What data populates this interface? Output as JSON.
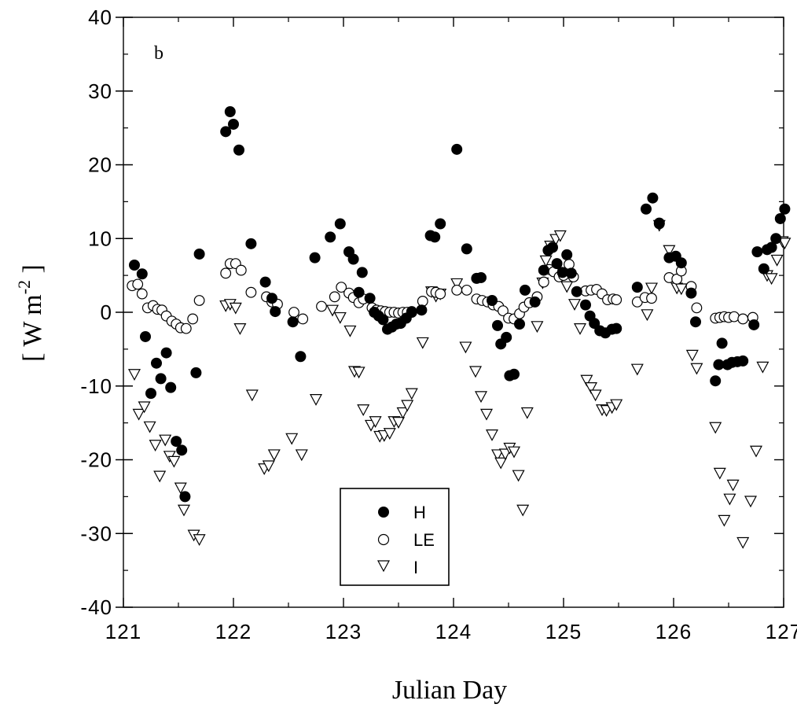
{
  "chart_data": {
    "type": "scatter",
    "panel_label": "b",
    "xlabel": "Julian Day",
    "ylabel_main": "[ W m",
    "ylabel_exp": "-2",
    "ylabel_close": " ]",
    "xlim": [
      121,
      127
    ],
    "ylim": [
      -40,
      40
    ],
    "xticks": [
      121,
      122,
      123,
      124,
      125,
      126,
      127
    ],
    "xtick_labels": [
      "121",
      "122",
      "123",
      "124",
      "125",
      "126",
      "127"
    ],
    "yticks": [
      -40,
      -30,
      -20,
      -10,
      0,
      10,
      20,
      30,
      40
    ],
    "ytick_labels": [
      "-40",
      "-30",
      "-20",
      "-10",
      "0",
      "10",
      "20",
      "30",
      "40"
    ],
    "grid": false,
    "legend_position": "bottom-center",
    "series": [
      {
        "name": "H",
        "marker": "filled-circle",
        "points": [
          [
            121.1,
            6.4
          ],
          [
            121.17,
            5.2
          ],
          [
            121.2,
            -3.3
          ],
          [
            121.25,
            -11.0
          ],
          [
            121.3,
            -6.9
          ],
          [
            121.34,
            -9.0
          ],
          [
            121.39,
            -5.5
          ],
          [
            121.43,
            -10.2
          ],
          [
            121.48,
            -17.5
          ],
          [
            121.53,
            -18.7
          ],
          [
            121.56,
            -25.0
          ],
          [
            121.66,
            -8.2
          ],
          [
            121.69,
            7.9
          ],
          [
            121.93,
            24.5
          ],
          [
            121.97,
            27.2
          ],
          [
            122.0,
            25.5
          ],
          [
            122.05,
            22.0
          ],
          [
            122.16,
            9.3
          ],
          [
            122.29,
            4.1
          ],
          [
            122.35,
            1.9
          ],
          [
            122.38,
            0.1
          ],
          [
            122.54,
            -1.3
          ],
          [
            122.61,
            -6.0
          ],
          [
            122.74,
            7.4
          ],
          [
            122.88,
            10.2
          ],
          [
            122.97,
            12.0
          ],
          [
            123.05,
            8.2
          ],
          [
            123.09,
            7.2
          ],
          [
            123.14,
            2.7
          ],
          [
            123.17,
            5.4
          ],
          [
            123.24,
            1.9
          ],
          [
            123.28,
            0.0
          ],
          [
            123.32,
            -0.5
          ],
          [
            123.36,
            -1.0
          ],
          [
            123.4,
            -2.3
          ],
          [
            123.44,
            -2.0
          ],
          [
            123.48,
            -1.6
          ],
          [
            123.52,
            -1.5
          ],
          [
            123.57,
            -0.8
          ],
          [
            123.62,
            0.0
          ],
          [
            123.71,
            0.3
          ],
          [
            123.79,
            10.4
          ],
          [
            123.83,
            10.2
          ],
          [
            123.88,
            12.0
          ],
          [
            124.03,
            22.1
          ],
          [
            124.12,
            8.6
          ],
          [
            124.21,
            4.6
          ],
          [
            124.25,
            4.7
          ],
          [
            124.35,
            1.6
          ],
          [
            124.4,
            -1.8
          ],
          [
            124.43,
            -4.3
          ],
          [
            124.48,
            -3.4
          ],
          [
            124.51,
            -8.6
          ],
          [
            124.55,
            -8.4
          ],
          [
            124.6,
            -1.6
          ],
          [
            124.65,
            3.0
          ],
          [
            124.74,
            1.4
          ],
          [
            124.82,
            5.7
          ],
          [
            124.86,
            8.4
          ],
          [
            124.9,
            8.8
          ],
          [
            124.94,
            6.6
          ],
          [
            124.99,
            5.4
          ],
          [
            125.03,
            7.8
          ],
          [
            125.07,
            5.3
          ],
          [
            125.12,
            2.8
          ],
          [
            125.2,
            1.0
          ],
          [
            125.24,
            -0.5
          ],
          [
            125.28,
            -1.5
          ],
          [
            125.33,
            -2.5
          ],
          [
            125.38,
            -2.8
          ],
          [
            125.44,
            -2.3
          ],
          [
            125.48,
            -2.2
          ],
          [
            125.67,
            3.4
          ],
          [
            125.75,
            14.0
          ],
          [
            125.81,
            15.5
          ],
          [
            125.87,
            12.1
          ],
          [
            125.96,
            7.4
          ],
          [
            126.02,
            7.6
          ],
          [
            126.07,
            6.7
          ],
          [
            126.16,
            2.6
          ],
          [
            126.2,
            -1.3
          ],
          [
            126.38,
            -9.3
          ],
          [
            126.41,
            -7.1
          ],
          [
            126.44,
            -4.2
          ],
          [
            126.49,
            -7.1
          ],
          [
            126.53,
            -6.8
          ],
          [
            126.58,
            -6.7
          ],
          [
            126.63,
            -6.6
          ],
          [
            126.73,
            -1.7
          ],
          [
            126.76,
            8.2
          ],
          [
            126.82,
            5.9
          ],
          [
            126.85,
            8.5
          ],
          [
            126.89,
            8.8
          ],
          [
            126.93,
            10.0
          ],
          [
            126.97,
            12.7
          ],
          [
            127.01,
            14.0
          ]
        ]
      },
      {
        "name": "LE",
        "marker": "open-circle",
        "points": [
          [
            121.08,
            3.6
          ],
          [
            121.13,
            3.8
          ],
          [
            121.17,
            2.5
          ],
          [
            121.22,
            0.6
          ],
          [
            121.27,
            0.9
          ],
          [
            121.31,
            0.4
          ],
          [
            121.35,
            0.3
          ],
          [
            121.39,
            -0.5
          ],
          [
            121.44,
            -1.2
          ],
          [
            121.48,
            -1.6
          ],
          [
            121.52,
            -2.1
          ],
          [
            121.57,
            -2.2
          ],
          [
            121.63,
            -0.9
          ],
          [
            121.69,
            1.6
          ],
          [
            121.93,
            5.3
          ],
          [
            121.97,
            6.6
          ],
          [
            122.02,
            6.6
          ],
          [
            122.07,
            5.7
          ],
          [
            122.16,
            2.7
          ],
          [
            122.3,
            2.1
          ],
          [
            122.35,
            1.4
          ],
          [
            122.4,
            1.1
          ],
          [
            122.55,
            0.0
          ],
          [
            122.63,
            -0.9
          ],
          [
            122.8,
            0.8
          ],
          [
            122.92,
            2.1
          ],
          [
            122.98,
            3.4
          ],
          [
            123.05,
            2.6
          ],
          [
            123.09,
            2.0
          ],
          [
            123.14,
            1.3
          ],
          [
            123.18,
            1.8
          ],
          [
            123.26,
            0.6
          ],
          [
            123.3,
            0.3
          ],
          [
            123.34,
            0.2
          ],
          [
            123.38,
            0.1
          ],
          [
            123.42,
            0.0
          ],
          [
            123.46,
            0.0
          ],
          [
            123.5,
            -0.1
          ],
          [
            123.54,
            0.0
          ],
          [
            123.58,
            0.0
          ],
          [
            123.62,
            0.1
          ],
          [
            123.72,
            1.5
          ],
          [
            123.8,
            2.8
          ],
          [
            123.84,
            2.7
          ],
          [
            123.88,
            2.5
          ],
          [
            124.03,
            3.0
          ],
          [
            124.12,
            3.0
          ],
          [
            124.21,
            1.8
          ],
          [
            124.26,
            1.6
          ],
          [
            124.31,
            1.4
          ],
          [
            124.36,
            1.0
          ],
          [
            124.41,
            0.8
          ],
          [
            124.45,
            0.2
          ],
          [
            124.5,
            -0.8
          ],
          [
            124.55,
            -0.9
          ],
          [
            124.6,
            -0.2
          ],
          [
            124.64,
            0.7
          ],
          [
            124.69,
            1.3
          ],
          [
            124.76,
            2.1
          ],
          [
            124.82,
            4.1
          ],
          [
            124.87,
            5.8
          ],
          [
            124.91,
            5.5
          ],
          [
            124.96,
            4.8
          ],
          [
            125.0,
            5.0
          ],
          [
            125.05,
            6.5
          ],
          [
            125.09,
            4.8
          ],
          [
            125.2,
            2.9
          ],
          [
            125.25,
            3.0
          ],
          [
            125.3,
            3.1
          ],
          [
            125.35,
            2.5
          ],
          [
            125.4,
            1.7
          ],
          [
            125.45,
            1.8
          ],
          [
            125.48,
            1.7
          ],
          [
            125.67,
            1.4
          ],
          [
            125.74,
            2.0
          ],
          [
            125.8,
            1.9
          ],
          [
            125.87,
            12.0
          ],
          [
            125.96,
            4.7
          ],
          [
            126.03,
            4.5
          ],
          [
            126.07,
            5.6
          ],
          [
            126.16,
            3.5
          ],
          [
            126.21,
            0.6
          ],
          [
            126.38,
            -0.8
          ],
          [
            126.42,
            -0.7
          ],
          [
            126.46,
            -0.6
          ],
          [
            126.5,
            -0.7
          ],
          [
            126.55,
            -0.6
          ],
          [
            126.63,
            -0.9
          ],
          [
            126.72,
            -0.7
          ]
        ]
      },
      {
        "name": "I",
        "marker": "open-triangle-down",
        "points": [
          [
            121.1,
            -8.4
          ],
          [
            121.14,
            -13.8
          ],
          [
            121.19,
            -12.8
          ],
          [
            121.24,
            -15.5
          ],
          [
            121.29,
            -18.0
          ],
          [
            121.33,
            -22.2
          ],
          [
            121.38,
            -17.3
          ],
          [
            121.42,
            -19.5
          ],
          [
            121.46,
            -20.2
          ],
          [
            121.52,
            -23.8
          ],
          [
            121.55,
            -26.8
          ],
          [
            121.64,
            -30.2
          ],
          [
            121.69,
            -30.8
          ],
          [
            121.93,
            0.9
          ],
          [
            121.97,
            1.1
          ],
          [
            122.02,
            0.6
          ],
          [
            122.06,
            -2.2
          ],
          [
            122.17,
            -11.2
          ],
          [
            122.28,
            -21.2
          ],
          [
            122.32,
            -20.8
          ],
          [
            122.37,
            -19.3
          ],
          [
            122.53,
            -17.1
          ],
          [
            122.62,
            -19.3
          ],
          [
            122.75,
            -11.8
          ],
          [
            122.9,
            0.3
          ],
          [
            122.97,
            -0.7
          ],
          [
            123.06,
            -2.5
          ],
          [
            123.1,
            -8.0
          ],
          [
            123.14,
            -8.1
          ],
          [
            123.18,
            -13.2
          ],
          [
            123.25,
            -15.3
          ],
          [
            123.29,
            -14.8
          ],
          [
            123.33,
            -16.8
          ],
          [
            123.37,
            -16.7
          ],
          [
            123.42,
            -16.4
          ],
          [
            123.46,
            -14.8
          ],
          [
            123.5,
            -14.9
          ],
          [
            123.54,
            -13.6
          ],
          [
            123.58,
            -12.6
          ],
          [
            123.62,
            -11.0
          ],
          [
            123.72,
            -4.1
          ],
          [
            123.8,
            2.8
          ],
          [
            123.84,
            2.2
          ],
          [
            123.88,
            2.5
          ],
          [
            124.03,
            3.9
          ],
          [
            124.11,
            -4.7
          ],
          [
            124.2,
            -8.0
          ],
          [
            124.25,
            -11.4
          ],
          [
            124.3,
            -13.8
          ],
          [
            124.35,
            -16.6
          ],
          [
            124.4,
            -19.3
          ],
          [
            124.43,
            -20.4
          ],
          [
            124.47,
            -19.2
          ],
          [
            124.51,
            -18.4
          ],
          [
            124.55,
            -18.9
          ],
          [
            124.59,
            -22.1
          ],
          [
            124.63,
            -26.8
          ],
          [
            124.67,
            -13.6
          ],
          [
            124.76,
            -1.9
          ],
          [
            124.81,
            4.0
          ],
          [
            124.84,
            7.0
          ],
          [
            124.88,
            9.0
          ],
          [
            124.93,
            9.9
          ],
          [
            124.97,
            10.4
          ],
          [
            125.03,
            3.5
          ],
          [
            125.1,
            1.1
          ],
          [
            125.15,
            -2.2
          ],
          [
            125.21,
            -9.2
          ],
          [
            125.25,
            -10.2
          ],
          [
            125.29,
            -11.2
          ],
          [
            125.35,
            -13.2
          ],
          [
            125.39,
            -13.3
          ],
          [
            125.44,
            -12.9
          ],
          [
            125.48,
            -12.5
          ],
          [
            125.67,
            -7.7
          ],
          [
            125.76,
            -0.3
          ],
          [
            125.8,
            3.3
          ],
          [
            125.87,
            11.8
          ],
          [
            125.96,
            8.4
          ],
          [
            126.03,
            3.3
          ],
          [
            126.07,
            3.2
          ],
          [
            126.17,
            -5.8
          ],
          [
            126.21,
            -7.6
          ],
          [
            126.38,
            -15.6
          ],
          [
            126.42,
            -21.8
          ],
          [
            126.46,
            -28.2
          ],
          [
            126.51,
            -25.3
          ],
          [
            126.54,
            -23.4
          ],
          [
            126.63,
            -31.2
          ],
          [
            126.7,
            -25.6
          ],
          [
            126.75,
            -18.8
          ],
          [
            126.81,
            -7.4
          ],
          [
            126.85,
            5.0
          ],
          [
            126.89,
            4.6
          ],
          [
            126.94,
            7.1
          ],
          [
            126.99,
            9.6
          ],
          [
            127.01,
            9.4
          ]
        ]
      }
    ]
  }
}
